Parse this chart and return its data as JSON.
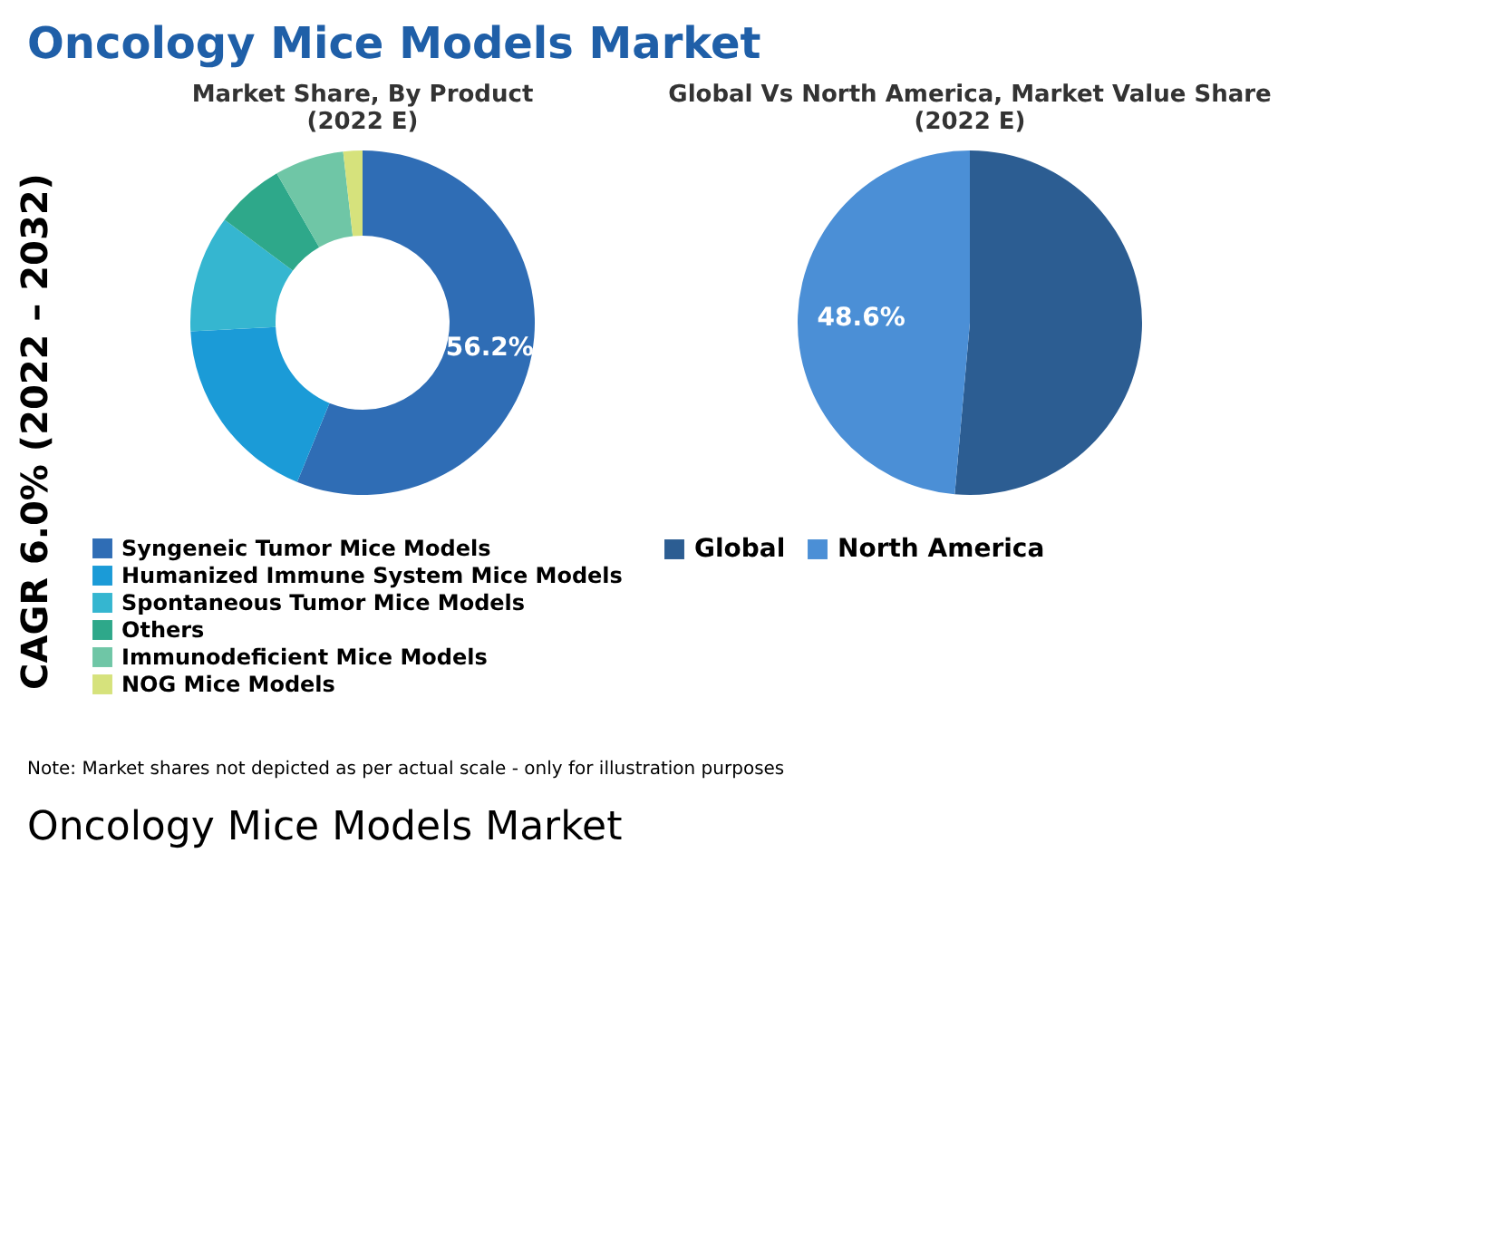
{
  "chart_data": [
    {
      "type": "donut",
      "title": "Market Share, By Product (2022 E)",
      "categories": [
        "Syngeneic Tumor Mice Models",
        "Humanized Immune System Mice Models",
        "Spontaneous Tumor Mice Models",
        "Others",
        "Immunodeficient Mice Models",
        "NOG Mice Models"
      ],
      "values": [
        56.2,
        18,
        11,
        6.5,
        6.5,
        1.8
      ],
      "colors": [
        "#2f6db5",
        "#1b9bd7",
        "#35b6d0",
        "#2ea88a",
        "#6fc6a6",
        "#d6e27c"
      ],
      "value_labels": [
        "56.2%",
        null,
        null,
        null,
        null,
        null
      ],
      "legend": "bottom",
      "annotations": [
        "Oncology Mice Models Market",
        "CAGR 6.0% (2022 – 2032)"
      ]
    },
    {
      "type": "pie",
      "title": "Global Vs North America, Market Value Share (2022 E)",
      "categories": [
        "Global",
        "North America"
      ],
      "values": [
        51.4,
        48.6
      ],
      "colors": [
        "#2c5d92",
        "#4b8fd6"
      ],
      "value_labels": [
        null,
        "48.6%"
      ],
      "legend": "bottom",
      "annotations": [
        "Note: Market shares not depicted as per actual scale - only for illustration purposes",
        "Oncology Mice Models Market"
      ]
    }
  ]
}
